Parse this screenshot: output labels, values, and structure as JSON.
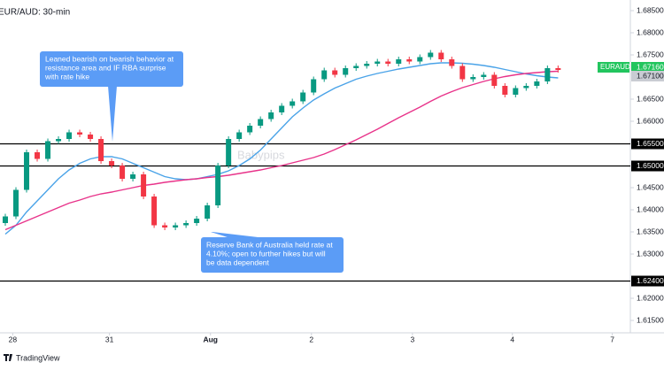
{
  "chart_data": {
    "type": "candlestick",
    "title": "EUR/AUD: 30-min",
    "watermark": "Babypips",
    "footer": "TradingView",
    "up_color": "#089981",
    "down_color": "#f23645",
    "xlim": [
      -0.5,
      58.8
    ],
    "xticks": [
      {
        "value": 0.7,
        "label": "28"
      },
      {
        "value": 9.8,
        "label": "31"
      },
      {
        "value": 19.3,
        "label": "Aug"
      },
      {
        "value": 28.8,
        "label": "2"
      },
      {
        "value": 38.3,
        "label": "3"
      },
      {
        "value": 47.7,
        "label": "4"
      },
      {
        "value": 57.1,
        "label": "7"
      }
    ],
    "ylim": [
      1.6122,
      1.6878
    ],
    "yticks": [
      {
        "value": 1.685,
        "label": "1.68500"
      },
      {
        "value": 1.68,
        "label": "1.68000"
      },
      {
        "value": 1.675,
        "label": "1.67500"
      },
      {
        "value": 1.665,
        "label": "1.66500"
      },
      {
        "value": 1.66,
        "label": "1.66000"
      },
      {
        "value": 1.645,
        "label": "1.64500"
      },
      {
        "value": 1.64,
        "label": "1.64000"
      },
      {
        "value": 1.635,
        "label": "1.63500"
      },
      {
        "value": 1.63,
        "label": "1.63000"
      },
      {
        "value": 1.62,
        "label": "1.62000"
      },
      {
        "value": 1.615,
        "label": "1.61500"
      }
    ],
    "levels": [
      {
        "value": 1.655,
        "label": "1.65500"
      },
      {
        "value": 1.65,
        "label": "1.65000"
      },
      {
        "value": 1.624,
        "label": "1.62400"
      }
    ],
    "open": [
      1.637,
      1.6385,
      1.6445,
      1.653,
      1.6515,
      1.6555,
      1.656,
      1.6575,
      1.657,
      1.656,
      1.651,
      1.65,
      1.647,
      1.648,
      1.643,
      1.6365,
      1.636,
      1.6365,
      1.637,
      1.638,
      1.641,
      1.65,
      1.656,
      1.6575,
      1.659,
      1.6605,
      1.662,
      1.6635,
      1.6645,
      1.6665,
      1.6695,
      1.6715,
      1.6705,
      1.672,
      1.6725,
      1.673,
      1.6735,
      1.673,
      1.674,
      1.6735,
      1.6745,
      1.6755,
      1.674,
      1.6725,
      1.6695,
      1.67,
      1.6705,
      1.668,
      1.666,
      1.6675,
      1.668,
      1.669,
      1.672
    ],
    "high": [
      1.6391,
      1.6451,
      1.6536,
      1.6536,
      1.6561,
      1.6566,
      1.6581,
      1.6581,
      1.6576,
      1.6566,
      1.6516,
      1.6506,
      1.6486,
      1.6486,
      1.6436,
      1.6371,
      1.6371,
      1.6376,
      1.6386,
      1.6416,
      1.6506,
      1.6566,
      1.6581,
      1.6596,
      1.6611,
      1.6626,
      1.6641,
      1.6651,
      1.6671,
      1.6701,
      1.6721,
      1.6721,
      1.6726,
      1.6731,
      1.6736,
      1.6741,
      1.6741,
      1.6746,
      1.6746,
      1.6751,
      1.6761,
      1.6761,
      1.6746,
      1.6731,
      1.6706,
      1.6711,
      1.6711,
      1.6686,
      1.6681,
      1.6686,
      1.6696,
      1.6726,
      1.6726
    ],
    "low": [
      1.6364,
      1.6379,
      1.6439,
      1.6509,
      1.6509,
      1.6549,
      1.6554,
      1.6564,
      1.6554,
      1.6504,
      1.6494,
      1.6464,
      1.6464,
      1.6424,
      1.6359,
      1.6354,
      1.6354,
      1.6359,
      1.6364,
      1.6374,
      1.6404,
      1.6494,
      1.6554,
      1.6569,
      1.6584,
      1.6599,
      1.6614,
      1.6629,
      1.6639,
      1.6659,
      1.6689,
      1.6699,
      1.6699,
      1.6714,
      1.6719,
      1.6724,
      1.6724,
      1.6724,
      1.6729,
      1.6729,
      1.6739,
      1.6734,
      1.6719,
      1.6689,
      1.6689,
      1.6694,
      1.6674,
      1.6654,
      1.6654,
      1.6669,
      1.6674,
      1.6684,
      1.671
    ],
    "close": [
      1.6385,
      1.6445,
      1.653,
      1.6515,
      1.6555,
      1.656,
      1.6575,
      1.657,
      1.656,
      1.651,
      1.65,
      1.647,
      1.648,
      1.643,
      1.6365,
      1.636,
      1.6365,
      1.637,
      1.638,
      1.641,
      1.65,
      1.656,
      1.6575,
      1.659,
      1.6605,
      1.662,
      1.6635,
      1.6645,
      1.6665,
      1.6695,
      1.6715,
      1.6705,
      1.672,
      1.6725,
      1.673,
      1.6735,
      1.673,
      1.674,
      1.6735,
      1.6745,
      1.6755,
      1.674,
      1.6725,
      1.6695,
      1.67,
      1.6705,
      1.668,
      1.666,
      1.6675,
      1.668,
      1.669,
      1.672,
      1.6716
    ],
    "series": [
      {
        "color": "#4aa3e8",
        "values": [
          1.6345,
          1.6365,
          1.6395,
          1.642,
          1.6445,
          1.647,
          1.649,
          1.6505,
          1.6515,
          1.652,
          1.652,
          1.6515,
          1.6505,
          1.6495,
          1.6485,
          1.6475,
          1.647,
          1.6468,
          1.647,
          1.6475,
          1.648,
          1.6488,
          1.65,
          1.6515,
          1.6535,
          1.656,
          1.6585,
          1.661,
          1.663,
          1.6648,
          1.6662,
          1.6675,
          1.6685,
          1.6695,
          1.6702,
          1.6708,
          1.6713,
          1.6718,
          1.6722,
          1.6726,
          1.673,
          1.6732,
          1.6732,
          1.6731,
          1.6729,
          1.6726,
          1.6722,
          1.6717,
          1.6712,
          1.6707,
          1.6703,
          1.67,
          1.6698
        ]
      },
      {
        "color": "#e8338a",
        "values": [
          1.6355,
          1.6365,
          1.6375,
          1.6385,
          1.6395,
          1.6405,
          1.6415,
          1.6422,
          1.643,
          1.6436,
          1.644,
          1.6445,
          1.645,
          1.6455,
          1.6458,
          1.6462,
          1.6465,
          1.6468,
          1.647,
          1.6473,
          1.6475,
          1.6478,
          1.6482,
          1.6486,
          1.649,
          1.6495,
          1.65,
          1.6506,
          1.6512,
          1.6518,
          1.6526,
          1.6536,
          1.6547,
          1.6558,
          1.657,
          1.6582,
          1.6595,
          1.6608,
          1.662,
          1.6632,
          1.6645,
          1.6657,
          1.6667,
          1.6676,
          1.6683,
          1.669,
          1.6696,
          1.6701,
          1.6705,
          1.6708,
          1.671,
          1.6712,
          1.6713
        ]
      }
    ],
    "price_tags": [
      {
        "value": 1.6716,
        "label": "1.67160",
        "name": "EURAUD",
        "color": "#22c55e"
      },
      {
        "value": 1.671,
        "label": "1.67100",
        "color": "#c9ccd3"
      }
    ],
    "annotations": [
      {
        "lines": [
          "Leaned bearish on bearish behavior at",
          "resistance area and IF RBA surprise",
          "with rate hike"
        ]
      },
      {
        "lines": [
          "Reserve Bank of Australia held rate at",
          "4.10%; open to further hikes but will",
          "be data dependent"
        ]
      }
    ]
  }
}
